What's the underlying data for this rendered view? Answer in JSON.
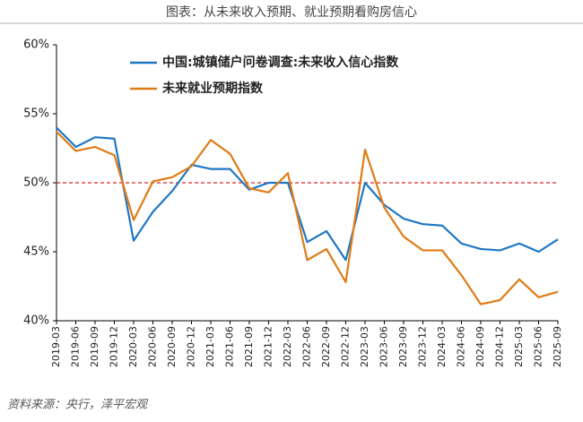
{
  "chart_data": {
    "type": "line",
    "title": "图表：从未来收入预期、就业预期看购房信心",
    "source": "资料来源：央行，泽平宏观",
    "categories": [
      "2019-03",
      "2019-06",
      "2019-09",
      "2019-12",
      "2020-03",
      "2020-06",
      "2020-09",
      "2020-12",
      "2021-03",
      "2021-06",
      "2021-09",
      "2021-12",
      "2022-03",
      "2022-06",
      "2022-09",
      "2022-12",
      "2023-03",
      "2023-06",
      "2023-09",
      "2023-12",
      "2024-03",
      "2024-06",
      "2024-09",
      "2024-12",
      "2025-03",
      "2025-06",
      "2025-09"
    ],
    "series": [
      {
        "name": "中国:城镇储户问卷调查:未来收入信心指数",
        "color": "#1f77c4",
        "values": [
          54.0,
          52.6,
          53.3,
          53.2,
          45.8,
          47.9,
          49.4,
          51.3,
          51.0,
          51.0,
          49.5,
          50.0,
          50.0,
          45.7,
          46.5,
          44.4,
          50.0,
          48.4,
          47.4,
          47.0,
          46.9,
          45.6,
          45.2,
          45.1,
          45.6,
          45.0,
          45.9
        ]
      },
      {
        "name": "未来就业预期指数",
        "color": "#e07b14",
        "values": [
          53.7,
          52.3,
          52.6,
          52.0,
          47.3,
          50.1,
          50.4,
          51.2,
          53.1,
          52.1,
          49.6,
          49.3,
          50.7,
          44.4,
          45.2,
          42.8,
          52.4,
          48.2,
          46.1,
          45.1,
          45.1,
          43.3,
          41.2,
          41.5,
          43.0,
          41.7,
          42.1
        ]
      }
    ],
    "ylim": [
      40,
      60
    ],
    "yticks": [
      {
        "value": 40,
        "label": "40%"
      },
      {
        "value": 45,
        "label": "45%"
      },
      {
        "value": 50,
        "label": "50%"
      },
      {
        "value": 55,
        "label": "55%"
      },
      {
        "value": 60,
        "label": "60%"
      }
    ],
    "reference_line": {
      "value": 50,
      "color": "#d62728"
    }
  }
}
